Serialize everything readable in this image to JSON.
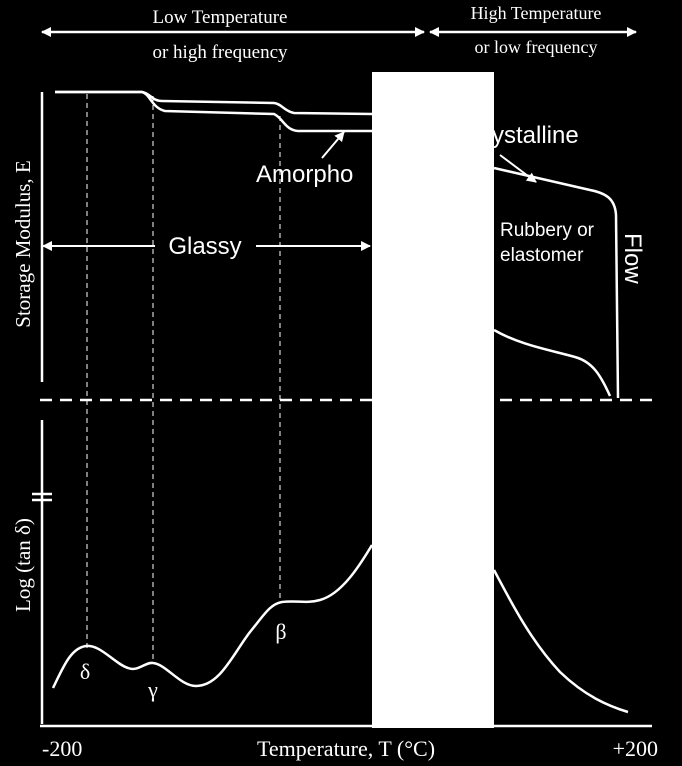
{
  "header": {
    "low_line1": "Low Temperature",
    "low_line2": "or high frequency",
    "high_line1": "High Temperature",
    "high_line2": "or low frequency"
  },
  "top_panel": {
    "y_axis_label": "Storage Modulus, E",
    "amorphous_label": "Amorpho",
    "crystalline_label": "rystalline",
    "glassy_label": "Glassy",
    "rubbery_line1": "Rubbery or",
    "rubbery_line2": "elastomer",
    "flow_label": "Flow"
  },
  "bottom_panel": {
    "y_axis_label": "Log (tan δ)",
    "peaks": [
      "δ",
      "γ",
      "β"
    ]
  },
  "x_axis": {
    "label": "Temperature, T (°C)",
    "min_label": "-200",
    "max_label": "+200"
  },
  "colors": {
    "background": "#000000",
    "foreground": "#ffffff"
  }
}
